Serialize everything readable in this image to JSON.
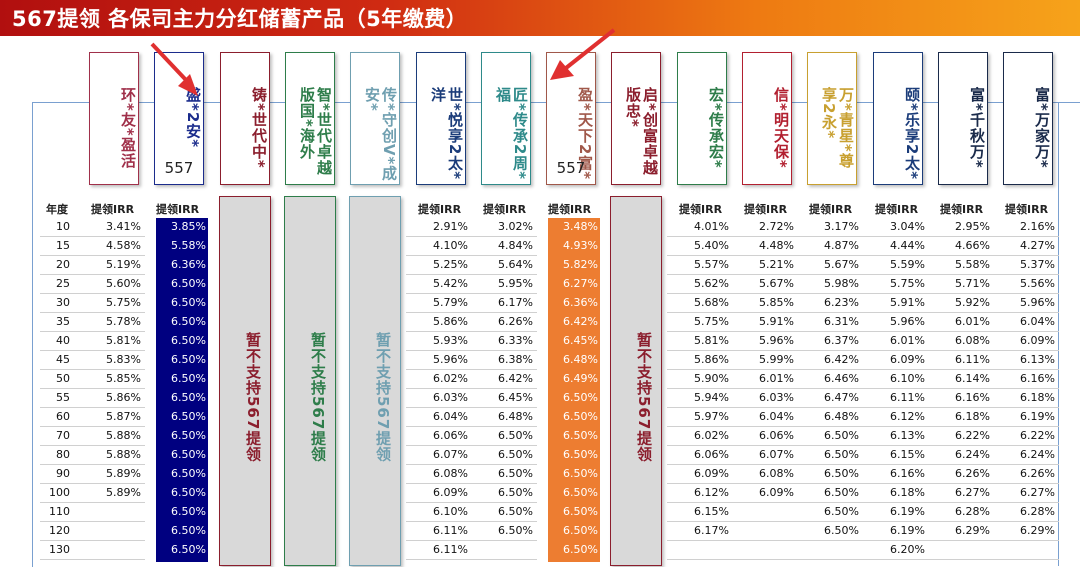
{
  "banner": {
    "title": "567提领 各保司主力分红储蓄产品（5年缴费）"
  },
  "colors": {
    "navy": "#000080",
    "orange": "#ed7d31",
    "grey": "#d9d9d9",
    "banner_start": "#b10f0f",
    "banner_end": "#f6a31a"
  },
  "table": {
    "year_header": "年度",
    "irr_header": "提领IRR",
    "not_supported": "暂不支持567提领",
    "years": [
      "10",
      "15",
      "20",
      "25",
      "30",
      "35",
      "40",
      "45",
      "50",
      "55",
      "60",
      "70",
      "80",
      "90",
      "100",
      "110",
      "120",
      "130"
    ],
    "products": [
      {
        "name": "环*友*盈活",
        "color": "#a0304a",
        "badge": "",
        "values": [
          "3.41%",
          "4.58%",
          "5.19%",
          "5.60%",
          "5.75%",
          "5.78%",
          "5.81%",
          "5.83%",
          "5.85%",
          "5.86%",
          "5.87%",
          "5.88%",
          "5.88%",
          "5.89%",
          "5.89%",
          "",
          "",
          ""
        ]
      },
      {
        "name": "盛*2安*",
        "color": "#1b2c8c",
        "badge": "557",
        "highlight": "navy",
        "values": [
          "3.85%",
          "5.58%",
          "6.36%",
          "6.50%",
          "6.50%",
          "6.50%",
          "6.50%",
          "6.50%",
          "6.50%",
          "6.50%",
          "6.50%",
          "6.50%",
          "6.50%",
          "6.50%",
          "6.50%",
          "6.50%",
          "6.50%",
          "6.50%"
        ]
      },
      {
        "name": "铸*世代中*",
        "color": "#8b1e2d",
        "badge": "",
        "unsupported": true,
        "ns_color": "#8b1e2d",
        "values": []
      },
      {
        "name": "智*世代卓越版国*海外",
        "color": "#2e7d4a",
        "badge": "",
        "unsupported": true,
        "ns_color": "#2e7d4a",
        "values": []
      },
      {
        "name": "传*守创V*成安*",
        "color": "#6f9fb0",
        "badge": "",
        "unsupported": true,
        "ns_color": "#6f9fb0",
        "values": []
      },
      {
        "name": "世*悦享2太*洋",
        "color": "#1b3c7a",
        "badge": "",
        "values": [
          "2.91%",
          "4.10%",
          "5.25%",
          "5.42%",
          "5.79%",
          "5.86%",
          "5.93%",
          "5.96%",
          "6.02%",
          "6.03%",
          "6.04%",
          "6.06%",
          "6.07%",
          "6.08%",
          "6.09%",
          "6.10%",
          "6.11%",
          "6.11%"
        ]
      },
      {
        "name": "匠*传承2周*福",
        "color": "#2e8a8a",
        "badge": "",
        "values": [
          "3.02%",
          "4.84%",
          "5.64%",
          "5.95%",
          "6.17%",
          "6.26%",
          "6.33%",
          "6.38%",
          "6.42%",
          "6.45%",
          "6.48%",
          "6.50%",
          "6.50%",
          "6.50%",
          "6.50%",
          "6.50%",
          "6.50%",
          ""
        ]
      },
      {
        "name": "盈*天下2富*",
        "color": "#a0584a",
        "badge": "557",
        "highlight": "orange",
        "values": [
          "3.48%",
          "4.93%",
          "5.82%",
          "6.27%",
          "6.36%",
          "6.42%",
          "6.45%",
          "6.48%",
          "6.49%",
          "6.50%",
          "6.50%",
          "6.50%",
          "6.50%",
          "6.50%",
          "6.50%",
          "6.50%",
          "6.50%",
          "6.50%"
        ]
      },
      {
        "name": "启*创富卓越版忠*",
        "color": "#8b1e2d",
        "badge": "",
        "unsupported": true,
        "ns_color": "#8b1e2d",
        "values": []
      },
      {
        "name": "宏*传承宏*",
        "color": "#2e7d4a",
        "badge": "",
        "values": [
          "4.01%",
          "5.40%",
          "5.57%",
          "5.62%",
          "5.68%",
          "5.75%",
          "5.81%",
          "5.86%",
          "5.90%",
          "5.94%",
          "5.97%",
          "6.02%",
          "6.06%",
          "6.09%",
          "6.12%",
          "6.15%",
          "6.17%",
          ""
        ]
      },
      {
        "name": "信*明天保*",
        "color": "#b22030",
        "badge": "",
        "values": [
          "2.72%",
          "4.48%",
          "5.21%",
          "5.67%",
          "5.85%",
          "5.91%",
          "5.96%",
          "5.99%",
          "6.01%",
          "6.03%",
          "6.04%",
          "6.06%",
          "6.07%",
          "6.08%",
          "6.09%",
          "",
          "",
          ""
        ]
      },
      {
        "name": "万*青星*尊享2永*",
        "color": "#c8a030",
        "badge": "",
        "values": [
          "3.17%",
          "4.87%",
          "5.67%",
          "5.98%",
          "6.23%",
          "6.31%",
          "6.37%",
          "6.42%",
          "6.46%",
          "6.47%",
          "6.48%",
          "6.50%",
          "6.50%",
          "6.50%",
          "6.50%",
          "6.50%",
          "6.50%",
          ""
        ]
      },
      {
        "name": "颐*乐享2太*",
        "color": "#1b3c7a",
        "badge": "",
        "values": [
          "3.04%",
          "4.44%",
          "5.59%",
          "5.75%",
          "5.91%",
          "5.96%",
          "6.01%",
          "6.09%",
          "6.10%",
          "6.11%",
          "6.12%",
          "6.13%",
          "6.15%",
          "6.16%",
          "6.18%",
          "6.19%",
          "6.19%",
          "6.20%"
        ]
      },
      {
        "name": "富*千秋万*",
        "color": "#1a2a4a",
        "badge": "",
        "values": [
          "2.95%",
          "4.66%",
          "5.58%",
          "5.71%",
          "5.92%",
          "6.01%",
          "6.08%",
          "6.11%",
          "6.14%",
          "6.16%",
          "6.18%",
          "6.22%",
          "6.24%",
          "6.26%",
          "6.27%",
          "6.28%",
          "6.29%",
          ""
        ]
      },
      {
        "name": "富*万家万*",
        "color": "#1a2a4a",
        "badge": "",
        "values": [
          "2.16%",
          "4.27%",
          "5.37%",
          "5.56%",
          "5.96%",
          "6.04%",
          "6.09%",
          "6.13%",
          "6.16%",
          "6.18%",
          "6.19%",
          "6.22%",
          "6.24%",
          "6.26%",
          "6.27%",
          "6.28%",
          "6.29%",
          ""
        ]
      }
    ]
  }
}
